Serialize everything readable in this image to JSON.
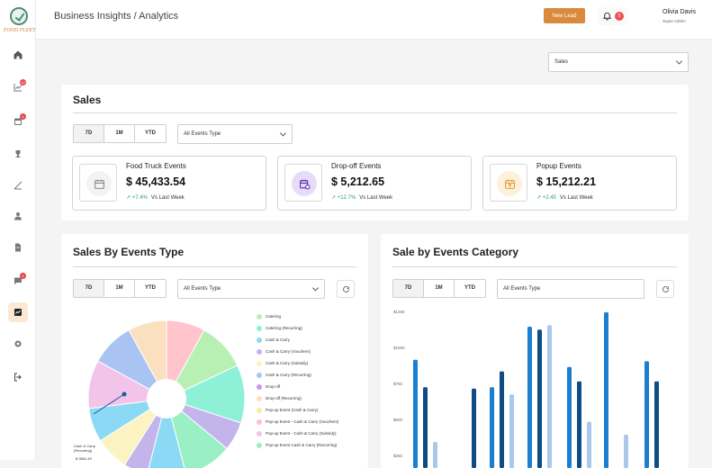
{
  "brand": {
    "logo_text": "FOOD FLEET"
  },
  "sidebar": {
    "items": [
      {
        "icon": "home-icon",
        "badge": ""
      },
      {
        "icon": "chart-icon",
        "badge": "12"
      },
      {
        "icon": "calendar-icon",
        "badge": "4"
      },
      {
        "icon": "trophy-icon",
        "badge": ""
      },
      {
        "icon": "ruler-icon",
        "badge": ""
      },
      {
        "icon": "users-icon",
        "badge": ""
      },
      {
        "icon": "document-icon",
        "badge": ""
      },
      {
        "icon": "chat-icon",
        "badge": "4"
      },
      {
        "icon": "analytics-icon",
        "badge": ""
      },
      {
        "icon": "gear-icon",
        "badge": ""
      },
      {
        "icon": "logout-icon",
        "badge": ""
      }
    ]
  },
  "header": {
    "title": "Business Insights / Analytics",
    "new_lead_label": "New Lead",
    "notification_count": "5",
    "user_name": "Olivia Davis",
    "user_role": "Super Admin"
  },
  "report_select": {
    "value": "Sales"
  },
  "sales": {
    "title": "Sales",
    "periods": [
      "7D",
      "1M",
      "YTD"
    ],
    "event_type_filter": "All Events Type",
    "stats": [
      {
        "label": "Food Truck Events",
        "value": "$ 45,433.54",
        "change": "+7.4%",
        "vs": "Vs Last Week",
        "icon": "calendar-icon",
        "color": "#888888",
        "bg": "#f3f3f3"
      },
      {
        "label": "Drop-off Events",
        "value": "$ 5,212.65",
        "change": "+12.7%",
        "vs": "Vs Last Week",
        "icon": "calendar-clock-icon",
        "color": "#5b2bb5",
        "bg": "#e6dcf7"
      },
      {
        "label": "Popup Events",
        "value": "$ 15,212.21",
        "change": "+2.45",
        "vs": "Vs Last Week",
        "icon": "calendar-upload-icon",
        "color": "#e0a030",
        "bg": "#fdf1dc"
      }
    ]
  },
  "by_type": {
    "title": "Sales By Events Type",
    "periods": [
      "7D",
      "1M",
      "YTD"
    ],
    "event_type_filter": "All Events Type",
    "tooltip_label": "Cash & Carry (Recurring)",
    "tooltip_value": "$ 3681.40",
    "legend": [
      {
        "label": "Catering",
        "color": "#b8f0b4"
      },
      {
        "label": "Catering (Recurring)",
        "color": "#8ff0d8"
      },
      {
        "label": "Cash & Carry",
        "color": "#8cd9f5"
      },
      {
        "label": "Cash & Carry (Vouchers)",
        "color": "#c3b4ec"
      },
      {
        "label": "Cash & Carry (Subsidy)",
        "color": "#fbf3c1"
      },
      {
        "label": "Cash & Carry (Recurring)",
        "color": "#a9c4f2"
      },
      {
        "label": "Drop-off",
        "color": "#c996f0"
      },
      {
        "label": "Drop-off (Recurring)",
        "color": "#fbe0c0"
      },
      {
        "label": "Pop-up Event (Cash & Carry)",
        "color": "#fbe7b0"
      },
      {
        "label": "Pop-up Event - Cash & Carry (Vouchers)",
        "color": "#fbc4cc"
      },
      {
        "label": "Pop-up Event - Cash & Carry (Subsidy)",
        "color": "#f2c4ea"
      },
      {
        "label": "Pop-up Event Cash & Carry (Recurring)",
        "color": "#9af0c4"
      }
    ]
  },
  "by_category": {
    "title": "Sale by Events Category",
    "periods": [
      "7D",
      "1M",
      "YTD"
    ],
    "event_type_filter": "All Events Type"
  },
  "chart_data": [
    {
      "type": "pie",
      "title": "Sales By Events Type",
      "labels": [
        "Catering",
        "Catering (Recurring)",
        "Cash & Carry",
        "Cash & Carry (Vouchers)",
        "Cash & Carry (Subsidy)",
        "Cash & Carry (Recurring)",
        "Drop-off",
        "Drop-off (Recurring)",
        "Pop-up Event (Cash & Carry)",
        "Pop-up Event - Cash & Carry (Vouchers)",
        "Pop-up Event - Cash & Carry (Subsidy)",
        "Pop-up Event Cash & Carry (Recurring)"
      ],
      "slice_colors": [
        "#ffc4cc",
        "#b8f0b4",
        "#8ff0d8",
        "#c3b4ec",
        "#9af0c4",
        "#8cd9f5",
        "#c3b4ec",
        "#fbf3c1",
        "#8cd9f5",
        "#f2c4ea",
        "#a9c4f2",
        "#fbe0c0"
      ],
      "values": [
        8,
        10,
        12,
        6,
        10,
        8,
        5,
        7,
        7,
        10,
        9,
        8
      ]
    },
    {
      "type": "bar",
      "title": "Sale by Events Category",
      "y_ticks": [
        "$1250",
        "$1000",
        "$750",
        "$500",
        "$250"
      ],
      "ylim": [
        0,
        1250
      ],
      "series_colors": [
        "#1a7fd0",
        "#0f4c84",
        "#a9c8ea"
      ],
      "groups": [
        [
          920,
          730,
          350
        ],
        [
          null,
          720,
          null
        ],
        [
          730,
          840,
          680
        ],
        [
          1150,
          1130,
          1160
        ],
        [
          870,
          770,
          490
        ],
        [
          1250,
          null,
          400
        ],
        [
          910,
          770,
          null
        ]
      ]
    }
  ]
}
